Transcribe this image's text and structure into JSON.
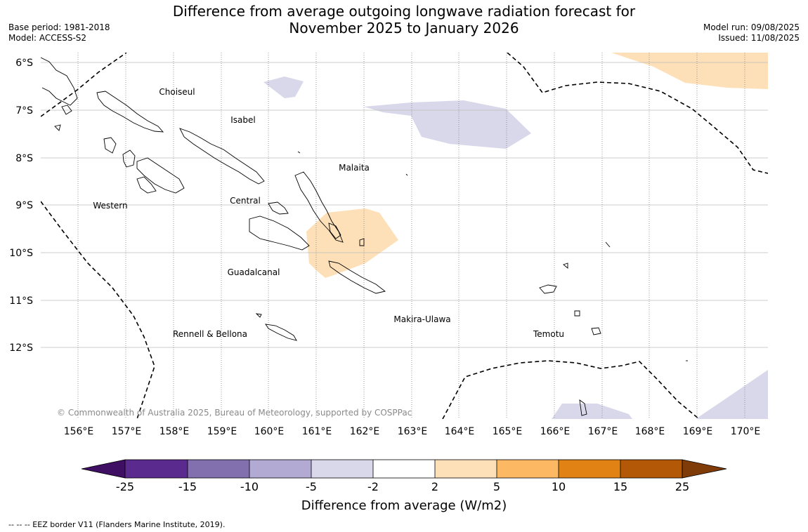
{
  "header": {
    "title_line1": "Difference from average outgoing longwave radiation forecast for",
    "title_line2": "November 2025 to January 2026",
    "base_period": "Base period: 1981-2018",
    "model": "Model: ACCESS-S2",
    "model_run": "Model run: 09/08/2025",
    "issued": "Issued: 11/08/2025"
  },
  "map": {
    "lat_labels": [
      "6°S",
      "7°S",
      "8°S",
      "9°S",
      "10°S",
      "11°S",
      "12°S"
    ],
    "lon_labels": [
      "156°E",
      "157°E",
      "158°E",
      "159°E",
      "160°E",
      "161°E",
      "162°E",
      "163°E",
      "164°E",
      "165°E",
      "166°E",
      "167°E",
      "168°E",
      "169°E",
      "170°E"
    ],
    "places": {
      "choiseul": "Choiseul",
      "isabel": "Isabel",
      "malaita": "Malaita",
      "western": "Western",
      "central": "Central",
      "guadalcanal": "Guadalcanal",
      "makira": "Makira-Ulawa",
      "rennell": "Rennell & Bellona",
      "temotu": "Temotu"
    },
    "copyright": "© Commonwealth of Australia 2025, Bureau of Meteorology, supported by COSPPac",
    "colors": {
      "negative_2_5": "#d8d8ea",
      "positive_2_5": "#fde0b8",
      "coast": "#000000",
      "grid": "#bbbbbb"
    }
  },
  "colorbar": {
    "ticks": [
      "-25",
      "-15",
      "-10",
      "-5",
      "-2",
      "2",
      "5",
      "10",
      "15",
      "25"
    ],
    "colors": [
      "#3f0f63",
      "#5b2a8e",
      "#8270ae",
      "#b2aad3",
      "#d8d8ea",
      "#ffffff",
      "#fde0b8",
      "#fdb863",
      "#e08214",
      "#b35806",
      "#7f3b08"
    ],
    "label": "Difference from average (W/m2)"
  },
  "footer": {
    "legend_text": "--  --  -- EEZ border V11 (Flanders Marine Institute, 2019)."
  }
}
